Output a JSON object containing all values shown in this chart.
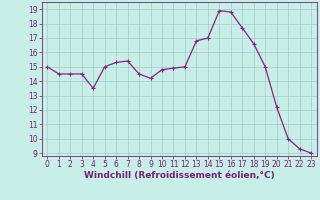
{
  "x": [
    0,
    1,
    2,
    3,
    4,
    5,
    6,
    7,
    8,
    9,
    10,
    11,
    12,
    13,
    14,
    15,
    16,
    17,
    18,
    19,
    20,
    21,
    22,
    23
  ],
  "y": [
    15.0,
    14.5,
    14.5,
    14.5,
    13.5,
    15.0,
    15.3,
    15.4,
    14.5,
    14.2,
    14.8,
    14.9,
    15.0,
    16.8,
    17.0,
    18.9,
    18.8,
    17.7,
    16.6,
    15.0,
    12.2,
    10.0,
    9.3,
    9.0
  ],
  "line_color": "#882288",
  "marker": "+",
  "marker_size": 3,
  "marker_lw": 0.8,
  "bg_color": "#c8eee8",
  "grid_color": "#a0ccc6",
  "xlabel": "Windchill (Refroidissement éolien,°C)",
  "xlim": [
    -0.5,
    23.5
  ],
  "ylim": [
    8.8,
    19.5
  ],
  "yticks": [
    9,
    10,
    11,
    12,
    13,
    14,
    15,
    16,
    17,
    18,
    19
  ],
  "xticks": [
    0,
    1,
    2,
    3,
    4,
    5,
    6,
    7,
    8,
    9,
    10,
    11,
    12,
    13,
    14,
    15,
    16,
    17,
    18,
    19,
    20,
    21,
    22,
    23
  ],
  "tick_label_size": 5.5,
  "xlabel_size": 6.5,
  "axis_color": "#772277",
  "linewidth": 0.9
}
